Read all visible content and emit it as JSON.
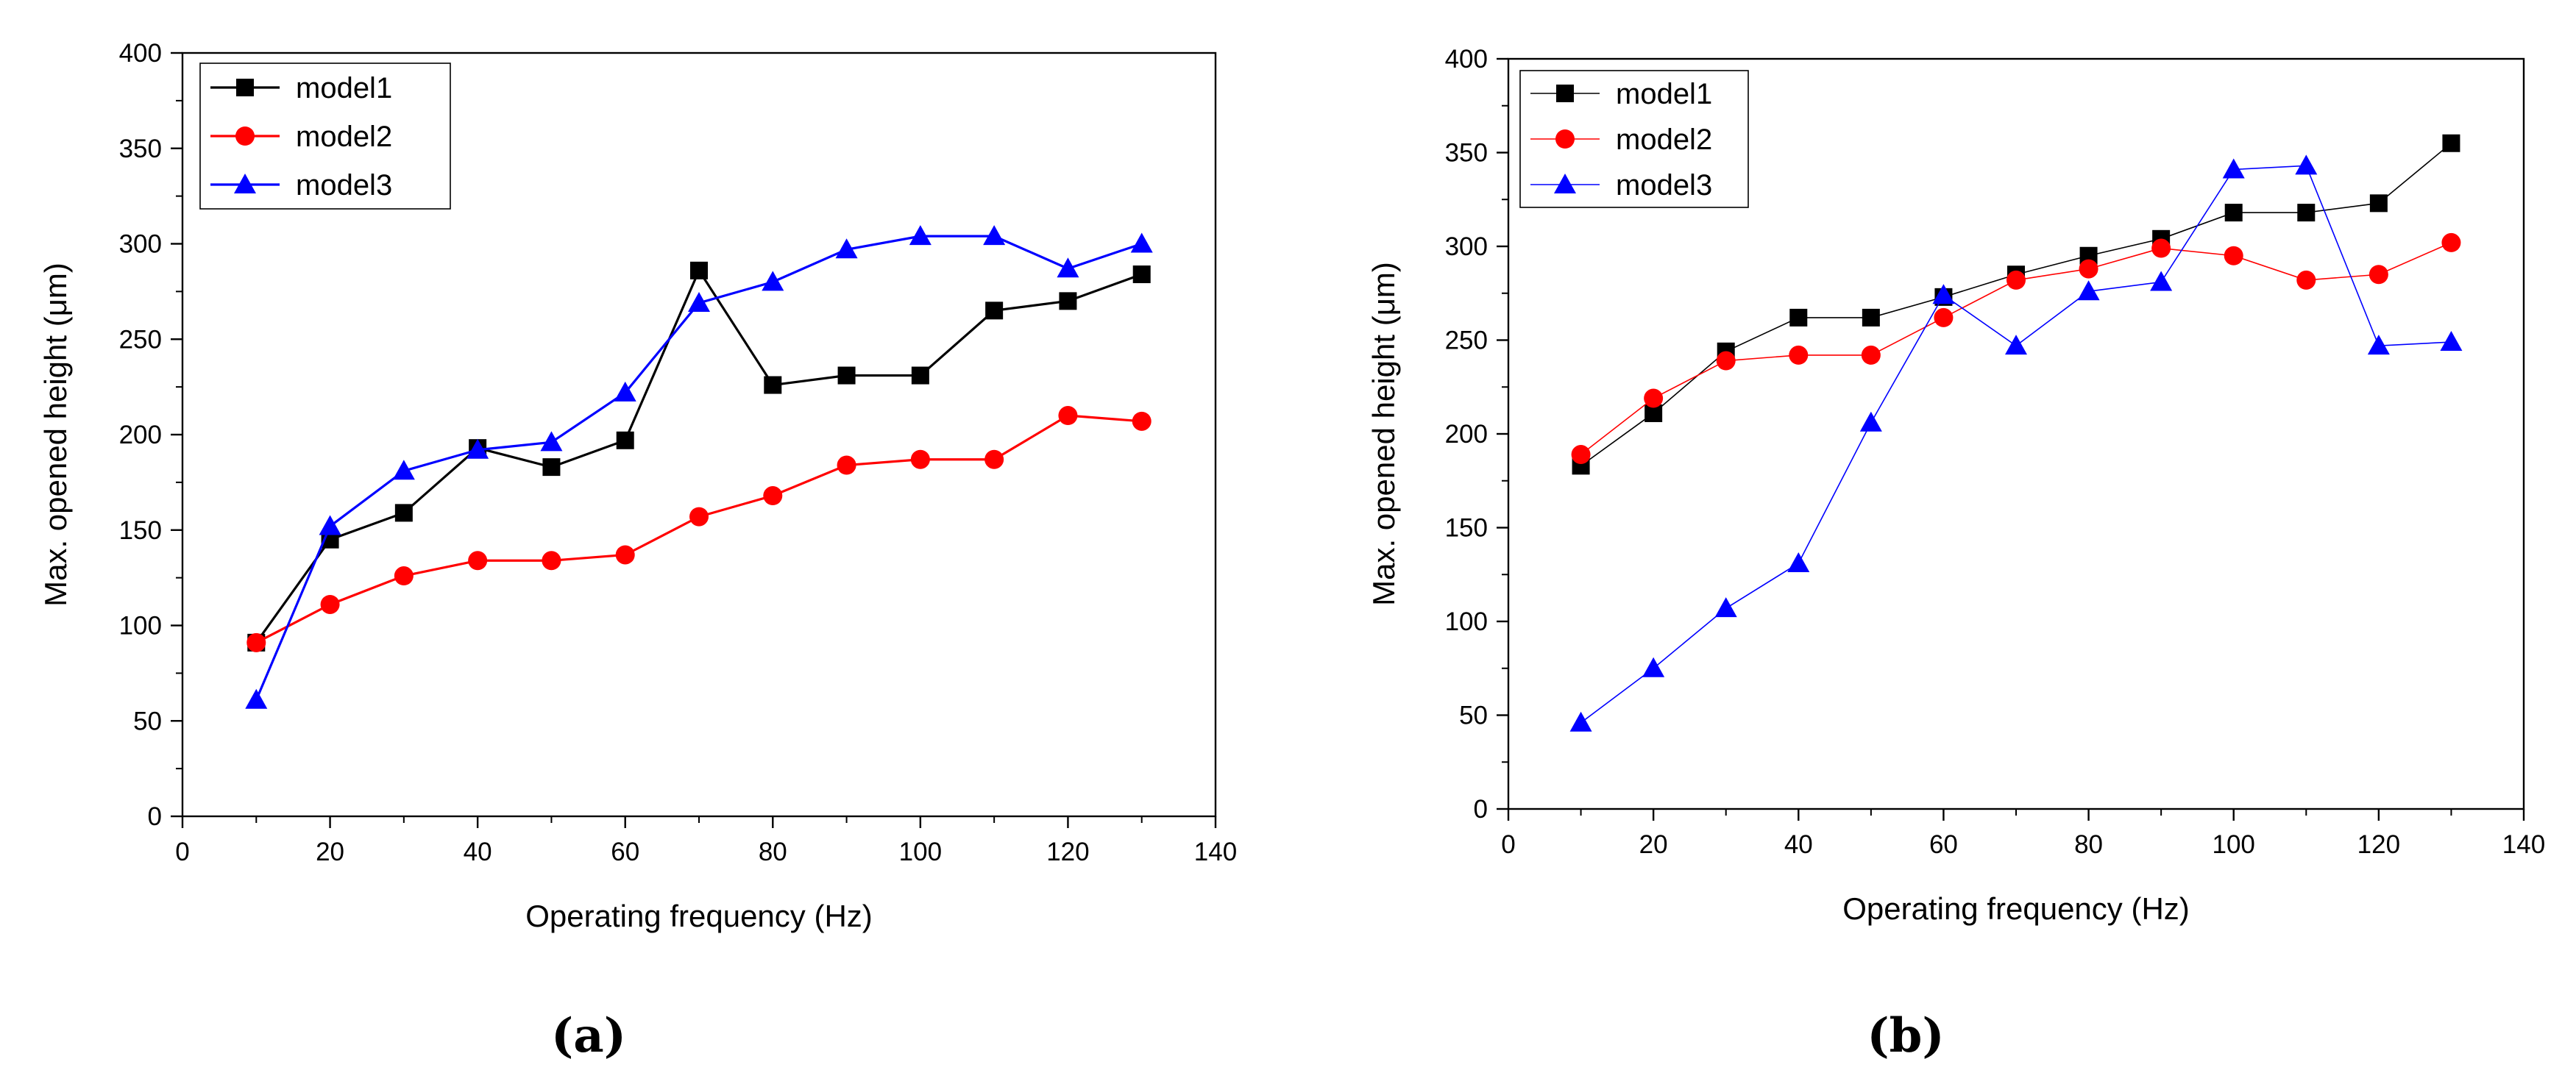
{
  "chart_data": [
    {
      "panel_label": "(a)",
      "type": "line",
      "xlabel": "Operating frequency (Hz)",
      "ylabel": "Max. opened height (μm)",
      "xlim": [
        0,
        140
      ],
      "ylim": [
        0,
        400
      ],
      "xticks": [
        0,
        20,
        40,
        60,
        80,
        100,
        120,
        140
      ],
      "yticks": [
        0,
        50,
        100,
        150,
        200,
        250,
        300,
        350,
        400
      ],
      "legend": "top-left",
      "grid": false,
      "x": [
        10,
        20,
        30,
        40,
        50,
        60,
        70,
        80,
        90,
        100,
        110,
        120,
        130
      ],
      "series": [
        {
          "name": "model1",
          "color": "#000000",
          "marker": "square",
          "values": [
            91,
            145,
            159,
            193,
            183,
            197,
            286,
            226,
            231,
            231,
            265,
            270,
            284
          ]
        },
        {
          "name": "model2",
          "color": "#ff0000",
          "marker": "circle",
          "values": [
            91,
            111,
            126,
            134,
            134,
            137,
            157,
            168,
            184,
            187,
            187,
            210,
            207
          ]
        },
        {
          "name": "model3",
          "color": "#0000ff",
          "marker": "triangle",
          "values": [
            61,
            152,
            181,
            192,
            196,
            222,
            269,
            280,
            297,
            304,
            304,
            287,
            300
          ]
        }
      ]
    },
    {
      "panel_label": "(b)",
      "type": "line",
      "xlabel": "Operating frequency (Hz)",
      "ylabel": "Max. opened height (μm)",
      "xlim": [
        0,
        140
      ],
      "ylim": [
        0,
        400
      ],
      "xticks": [
        0,
        20,
        40,
        60,
        80,
        100,
        120,
        140
      ],
      "yticks": [
        0,
        50,
        100,
        150,
        200,
        250,
        300,
        350,
        400
      ],
      "legend": "top-left",
      "grid": false,
      "x": [
        10,
        20,
        30,
        40,
        50,
        60,
        70,
        80,
        90,
        100,
        110,
        120,
        130
      ],
      "series": [
        {
          "name": "model1",
          "color": "#000000",
          "marker": "square",
          "values": [
            183,
            211,
            244,
            262,
            262,
            273,
            285,
            295,
            304,
            318,
            318,
            323,
            355
          ]
        },
        {
          "name": "model2",
          "color": "#ff0000",
          "marker": "circle",
          "values": [
            189,
            219,
            239,
            242,
            242,
            262,
            282,
            288,
            299,
            295,
            282,
            285,
            302
          ]
        },
        {
          "name": "model3",
          "color": "#0000ff",
          "marker": "triangle",
          "values": [
            46,
            75,
            107,
            131,
            206,
            274,
            247,
            276,
            281,
            341,
            343,
            247,
            249
          ]
        }
      ]
    }
  ]
}
